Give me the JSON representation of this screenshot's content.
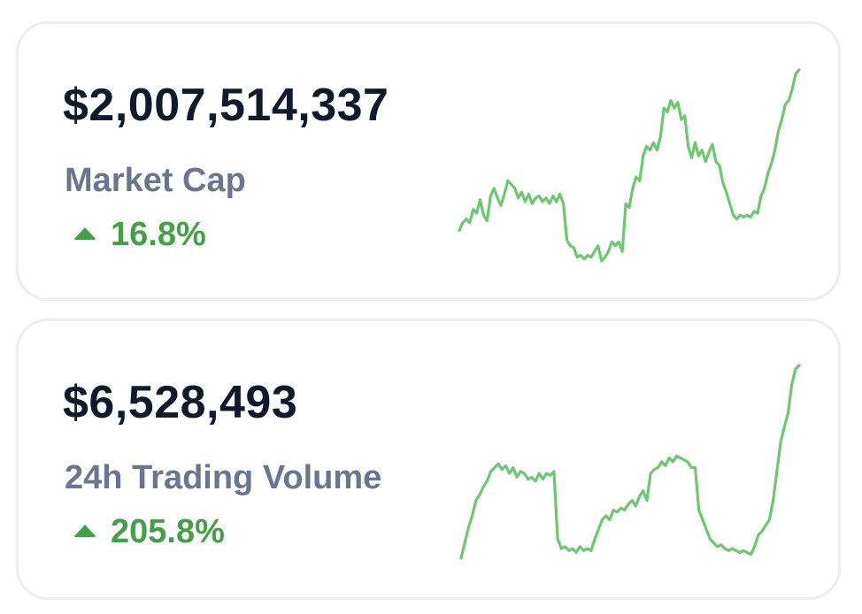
{
  "cards": [
    {
      "value": "$2,007,514,337",
      "label": "Market Cap",
      "change": "16.8%",
      "direction": "up",
      "color": "#43a047",
      "spark_color": "#6cc96f",
      "sparkline": [
        0.16,
        0.2,
        0.22,
        0.2,
        0.27,
        0.25,
        0.32,
        0.24,
        0.21,
        0.34,
        0.38,
        0.33,
        0.29,
        0.35,
        0.42,
        0.4,
        0.38,
        0.33,
        0.36,
        0.31,
        0.35,
        0.3,
        0.33,
        0.34,
        0.31,
        0.33,
        0.3,
        0.34,
        0.31,
        0.35,
        0.3,
        0.11,
        0.08,
        0.07,
        0.02,
        0.03,
        0.01,
        0.03,
        0.02,
        0.05,
        0.08,
        0.0,
        0.02,
        0.05,
        0.1,
        0.08,
        0.1,
        0.05,
        0.3,
        0.28,
        0.38,
        0.44,
        0.42,
        0.55,
        0.6,
        0.58,
        0.62,
        0.58,
        0.65,
        0.8,
        0.78,
        0.84,
        0.8,
        0.83,
        0.74,
        0.76,
        0.6,
        0.54,
        0.62,
        0.55,
        0.58,
        0.52,
        0.57,
        0.61,
        0.52,
        0.5,
        0.41,
        0.36,
        0.3,
        0.24,
        0.22,
        0.24,
        0.23,
        0.24,
        0.23,
        0.26,
        0.25,
        0.34,
        0.38,
        0.46,
        0.51,
        0.58,
        0.68,
        0.74,
        0.82,
        0.84,
        0.9,
        0.98,
        1.0
      ]
    },
    {
      "value": "$6,528,493",
      "label": "24h Trading Volume",
      "change": "205.8%",
      "direction": "up",
      "color": "#43a047",
      "spark_color": "#6cc96f",
      "sparkline": [
        0.0,
        0.08,
        0.16,
        0.22,
        0.3,
        0.33,
        0.37,
        0.4,
        0.45,
        0.47,
        0.49,
        0.46,
        0.48,
        0.44,
        0.47,
        0.42,
        0.45,
        0.44,
        0.41,
        0.42,
        0.4,
        0.44,
        0.41,
        0.44,
        0.43,
        0.45,
        0.1,
        0.05,
        0.06,
        0.04,
        0.05,
        0.03,
        0.06,
        0.04,
        0.05,
        0.04,
        0.1,
        0.15,
        0.2,
        0.22,
        0.2,
        0.25,
        0.24,
        0.26,
        0.25,
        0.28,
        0.3,
        0.27,
        0.32,
        0.35,
        0.3,
        0.44,
        0.46,
        0.47,
        0.5,
        0.48,
        0.52,
        0.5,
        0.53,
        0.52,
        0.51,
        0.5,
        0.47,
        0.47,
        0.25,
        0.2,
        0.15,
        0.1,
        0.08,
        0.06,
        0.07,
        0.05,
        0.04,
        0.05,
        0.04,
        0.03,
        0.04,
        0.03,
        0.02,
        0.06,
        0.12,
        0.14,
        0.17,
        0.2,
        0.3,
        0.45,
        0.6,
        0.68,
        0.75,
        0.9,
        0.98,
        1.0
      ]
    }
  ]
}
